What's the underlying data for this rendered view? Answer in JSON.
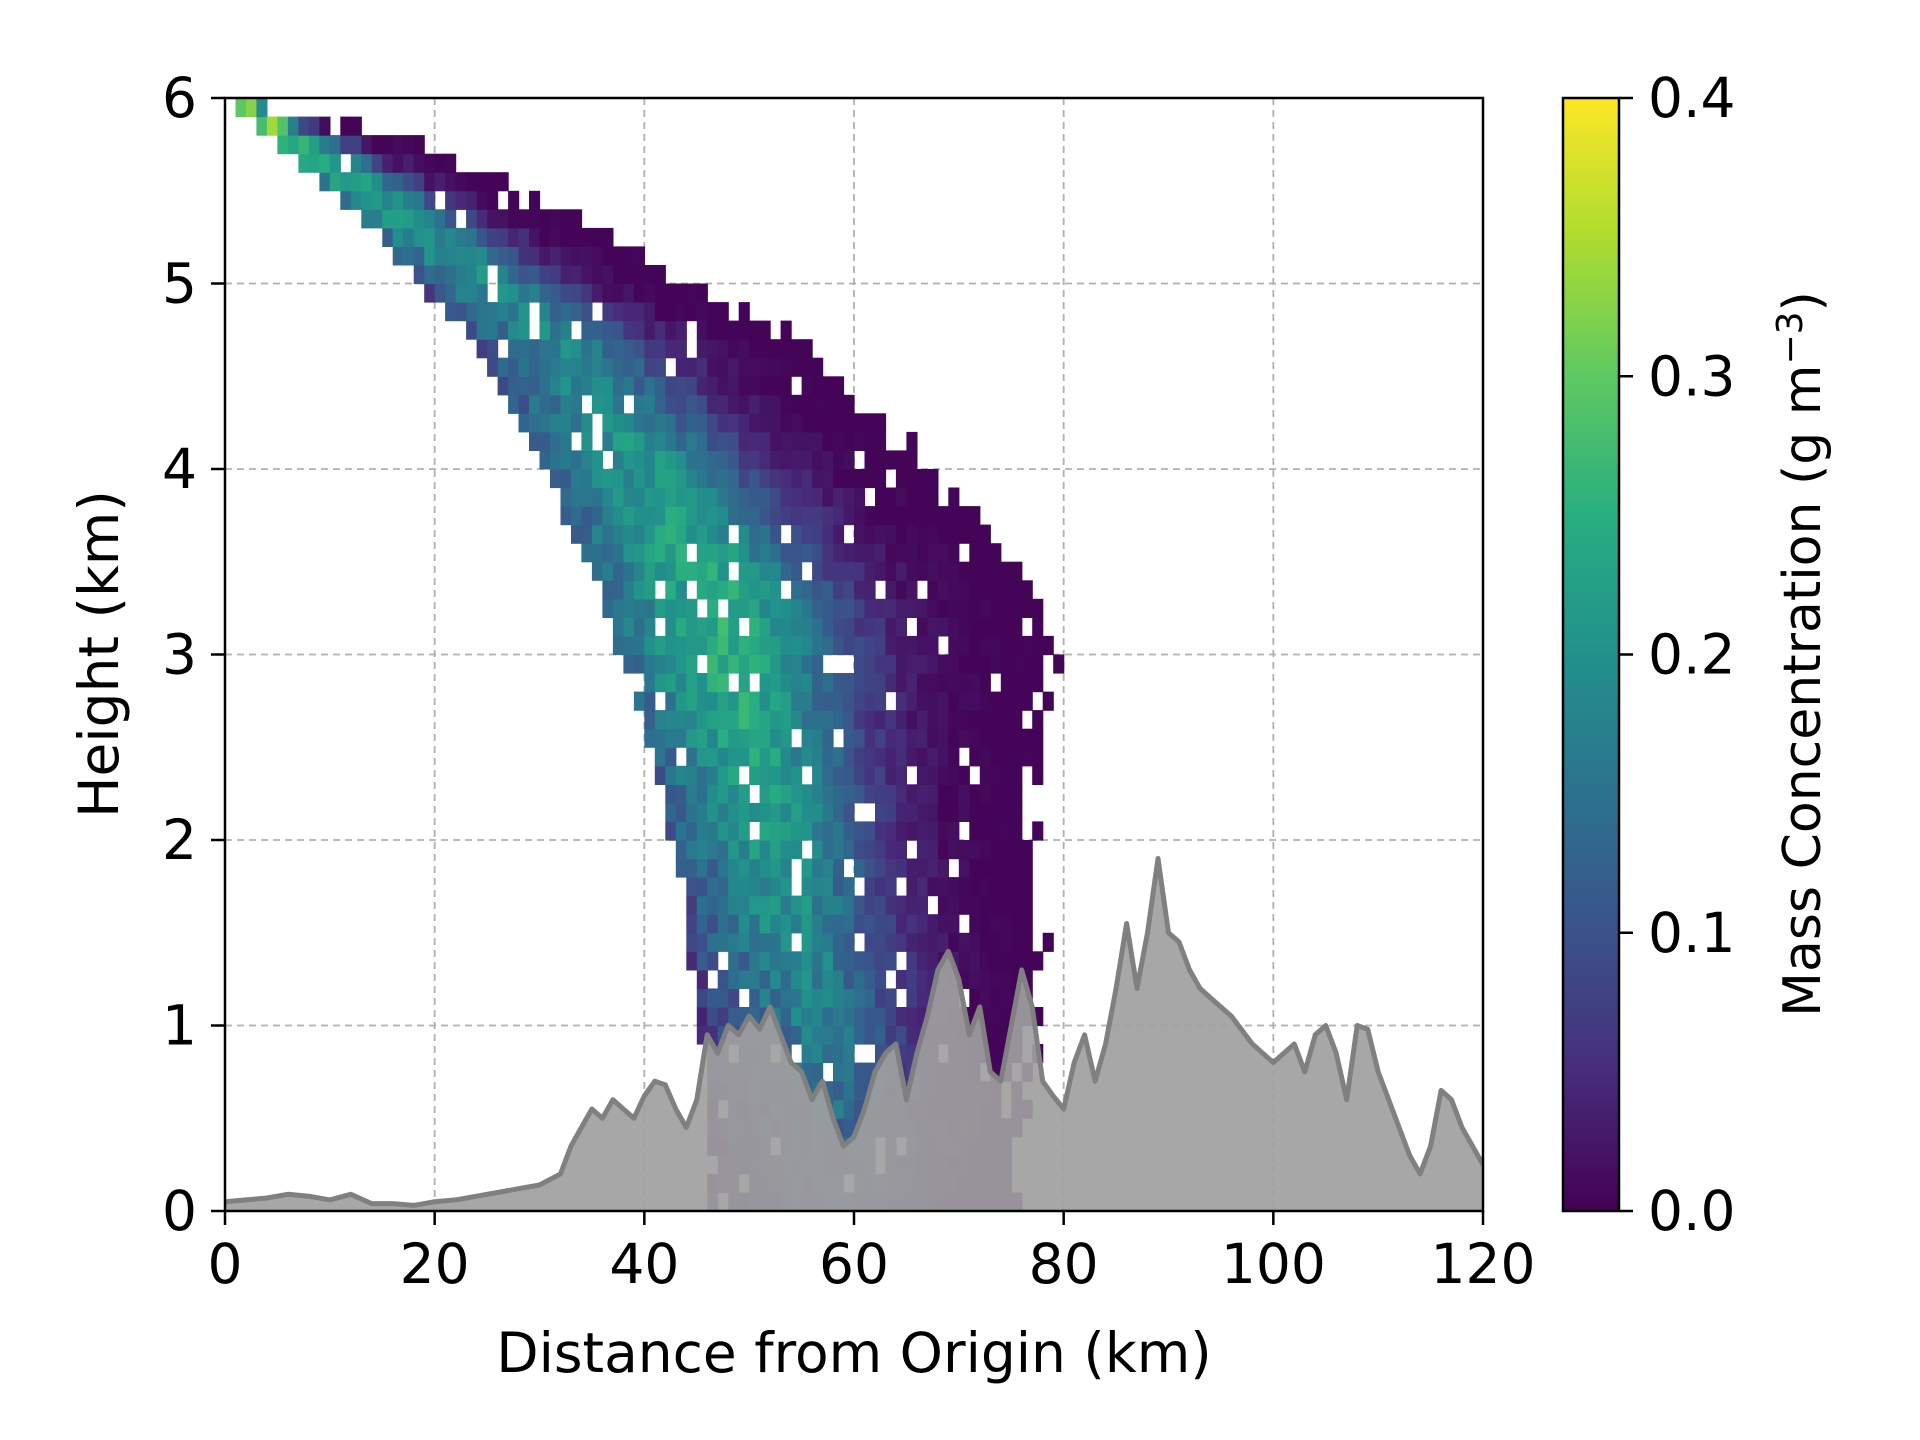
{
  "chart_data": {
    "type": "heatmap",
    "xlabel": "Distance from Origin (km)",
    "ylabel": "Height (km)",
    "xlim": [
      0,
      120
    ],
    "ylim": [
      0,
      6
    ],
    "xticks": [
      0,
      20,
      40,
      60,
      80,
      100,
      120
    ],
    "yticks": [
      0,
      1,
      2,
      3,
      4,
      5,
      6
    ],
    "xtick_labels": [
      "0",
      "20",
      "40",
      "60",
      "80",
      "100",
      "120"
    ],
    "ytick_labels": [
      "0",
      "1",
      "2",
      "3",
      "4",
      "5",
      "6"
    ],
    "grid": true,
    "colormap": "viridis",
    "colorbar": {
      "label_main": "Mass Concentration (g m",
      "label_sup": "−3",
      "label_close": ")",
      "range": [
        0,
        0.4
      ],
      "ticks": [
        0.0,
        0.1,
        0.2,
        0.3,
        0.4
      ],
      "tick_labels": [
        "0.0",
        "0.1",
        "0.2",
        "0.3",
        "0.4"
      ]
    },
    "plume": {
      "description_series": "binned mass concentration, estimated envelope",
      "bin_width_km": 1.0,
      "bin_height_km": 0.1,
      "heights_km": [
        6.0,
        5.75,
        5.5,
        5.25,
        5.0,
        4.75,
        4.5,
        4.25,
        4.0,
        3.75,
        3.5,
        3.25,
        3.0,
        2.75,
        2.5,
        2.25,
        2.0,
        1.75,
        1.5,
        1.25,
        1.0,
        0.75,
        0.5,
        0.25,
        0.0
      ],
      "left_edge_km": [
        0,
        5,
        10,
        15,
        19,
        23,
        26,
        29,
        31,
        33,
        35,
        37,
        38,
        40,
        41,
        42,
        43,
        44,
        44,
        45,
        45,
        46,
        46,
        46,
        46
      ],
      "right_edge_km": [
        2,
        20,
        28,
        38,
        43,
        53,
        58,
        63,
        67,
        72,
        75,
        77,
        79,
        78,
        77,
        77,
        77,
        77,
        78,
        77,
        77,
        76,
        76,
        75,
        75
      ],
      "core_km": [
        1,
        7,
        14,
        20,
        26,
        31,
        35,
        38,
        41,
        44,
        46,
        48,
        49,
        50,
        51,
        52,
        53,
        54,
        55,
        56,
        57,
        58,
        59,
        60,
        60
      ],
      "core_value": [
        0.38,
        0.26,
        0.22,
        0.2,
        0.19,
        0.18,
        0.18,
        0.2,
        0.21,
        0.22,
        0.24,
        0.25,
        0.25,
        0.24,
        0.23,
        0.23,
        0.22,
        0.2,
        0.2,
        0.18,
        0.17,
        0.16,
        0.14,
        0.12,
        0.1
      ]
    },
    "terrain": {
      "x": [
        0,
        2,
        4,
        6,
        8,
        10,
        12,
        14,
        16,
        18,
        20,
        22,
        24,
        26,
        28,
        30,
        32,
        33,
        34,
        35,
        36,
        37,
        38,
        39,
        40,
        41,
        42,
        43,
        44,
        45,
        46,
        47,
        48,
        49,
        50,
        51,
        52,
        53,
        54,
        55,
        56,
        57,
        58,
        59,
        60,
        61,
        62,
        63,
        64,
        65,
        66,
        67,
        68,
        69,
        70,
        71,
        72,
        73,
        74,
        75,
        76,
        77,
        78,
        79,
        80,
        81,
        82,
        83,
        84,
        85,
        86,
        87,
        88,
        89,
        90,
        91,
        92,
        93,
        94,
        95,
        96,
        98,
        100,
        101,
        102,
        103,
        104,
        105,
        106,
        107,
        108,
        109,
        110,
        111,
        112,
        113,
        114,
        115,
        116,
        117,
        118,
        119,
        120
      ],
      "y": [
        0.05,
        0.06,
        0.07,
        0.09,
        0.08,
        0.06,
        0.09,
        0.04,
        0.04,
        0.03,
        0.05,
        0.06,
        0.08,
        0.1,
        0.12,
        0.14,
        0.2,
        0.35,
        0.45,
        0.55,
        0.5,
        0.6,
        0.55,
        0.5,
        0.62,
        0.7,
        0.68,
        0.55,
        0.45,
        0.6,
        0.95,
        0.85,
        1.0,
        0.95,
        1.05,
        0.98,
        1.1,
        0.95,
        0.8,
        0.75,
        0.6,
        0.7,
        0.5,
        0.35,
        0.4,
        0.55,
        0.75,
        0.85,
        0.9,
        0.6,
        0.85,
        1.05,
        1.3,
        1.4,
        1.25,
        0.95,
        1.1,
        0.75,
        0.7,
        1.0,
        1.3,
        1.1,
        0.7,
        0.62,
        0.55,
        0.8,
        0.95,
        0.7,
        0.9,
        1.2,
        1.55,
        1.2,
        1.5,
        1.9,
        1.5,
        1.45,
        1.3,
        1.2,
        1.15,
        1.1,
        1.05,
        0.9,
        0.8,
        0.85,
        0.9,
        0.75,
        0.95,
        1.0,
        0.85,
        0.6,
        1.0,
        0.98,
        0.75,
        0.6,
        0.45,
        0.3,
        0.2,
        0.35,
        0.65,
        0.6,
        0.45,
        0.35,
        0.25
      ],
      "fill_color": "#a0a0a0",
      "line_color": "#808080"
    }
  }
}
